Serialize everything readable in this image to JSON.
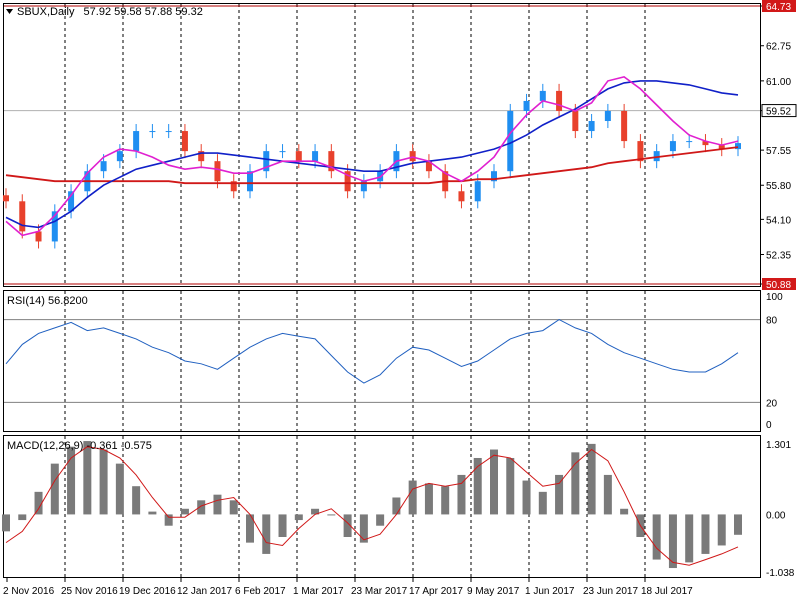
{
  "colors": {
    "bull": "#1f8ef1",
    "bear": "#e8412c",
    "ma_fast": "#e020d0",
    "ma_mid": "#1020c8",
    "ma_slow": "#d01818",
    "rsi_line": "#2060c0",
    "macd_hist": "#7a7a7a",
    "macd_signal": "#d01818",
    "price_line": "#b00000",
    "level_bg": "#d21919"
  },
  "chart_data": [
    {
      "type": "candlestick",
      "title": "SBUX,Daily",
      "ohlc_label": "57.92 59.58 57.88 59.32",
      "ylim": [
        50.88,
        64.73
      ],
      "yticks": [
        "64.73",
        "62.75",
        "61.00",
        "59.52",
        "57.55",
        "55.80",
        "54.10",
        "52.35",
        "50.88"
      ],
      "highlight_levels": [
        "64.73",
        "50.88"
      ],
      "current_price": "59.52",
      "xlabels": [
        "2 Nov 2016",
        "25 Nov 2016",
        "19 Dec 2016",
        "12 Jan 2017",
        "6 Feb 2017",
        "1 Mar 2017",
        "23 Mar 2017",
        "17 Apr 2017",
        "9 May 2017",
        "1 Jun 2017",
        "23 Jun 2017",
        "18 Jul 2017"
      ],
      "grid": "vertical dashed at date labels",
      "series": [
        {
          "values": [
            55.0,
            53.5,
            53.0,
            54.5,
            55.5,
            56.5,
            57.0,
            57.5,
            58.5,
            58.5,
            58.5,
            57.5,
            57.0,
            56.0,
            55.5,
            56.5,
            57.5,
            57.5,
            57.0,
            57.5,
            56.5,
            55.5,
            56.0,
            56.5,
            57.5,
            57.0,
            56.5,
            55.5,
            55.0,
            56.0,
            56.5,
            59.5,
            60.0,
            60.5,
            59.5,
            58.5,
            59.0,
            59.5,
            58.0,
            57.0,
            57.5,
            58.0,
            58.0,
            57.8,
            57.6,
            57.9
          ]
        },
        {
          "values": [
            54.0,
            53.3,
            53.5,
            54.3,
            55.3,
            56.4,
            57.2,
            57.6,
            57.5,
            57.2,
            56.8,
            56.6,
            56.7,
            56.6,
            56.4,
            56.4,
            56.7,
            57.0,
            57.0,
            57.0,
            56.7,
            56.3,
            56.0,
            56.2,
            57.0,
            57.2,
            57.0,
            56.4,
            56.0,
            56.5,
            57.2,
            58.4,
            59.3,
            60.0,
            59.8,
            59.5,
            59.9,
            61.0,
            61.2,
            60.6,
            59.8,
            59.0,
            58.3,
            58.0,
            57.8,
            58.0
          ]
        },
        {
          "values": [
            54.2,
            53.8,
            53.7,
            54.0,
            54.5,
            55.2,
            55.8,
            56.2,
            56.6,
            56.8,
            57.0,
            57.2,
            57.4,
            57.4,
            57.3,
            57.2,
            57.1,
            57.0,
            56.9,
            56.8,
            56.7,
            56.6,
            56.5,
            56.5,
            56.7,
            56.9,
            57.0,
            57.1,
            57.2,
            57.4,
            57.6,
            57.9,
            58.3,
            58.8,
            59.2,
            59.6,
            60.1,
            60.6,
            60.9,
            61.0,
            61.0,
            60.9,
            60.8,
            60.6,
            60.4,
            60.3
          ]
        },
        {
          "values": [
            56.3,
            56.2,
            56.1,
            56.0,
            56.0,
            56.0,
            56.0,
            56.0,
            56.0,
            56.0,
            56.0,
            55.9,
            55.9,
            55.9,
            55.9,
            55.9,
            55.9,
            55.9,
            55.9,
            55.9,
            55.9,
            55.9,
            55.9,
            55.9,
            55.9,
            55.9,
            55.9,
            56.0,
            56.0,
            56.1,
            56.1,
            56.2,
            56.3,
            56.4,
            56.5,
            56.6,
            56.7,
            56.9,
            57.0,
            57.1,
            57.2,
            57.3,
            57.4,
            57.5,
            57.6,
            57.7
          ]
        }
      ]
    },
    {
      "type": "line",
      "title": "RSI(14) 56.8200",
      "ylim": [
        0,
        100
      ],
      "yticks": [
        "100",
        "80",
        "20",
        "0"
      ],
      "levels": [
        80,
        20
      ],
      "series": [
        {
          "values": [
            48,
            62,
            70,
            74,
            78,
            72,
            74,
            70,
            66,
            60,
            56,
            50,
            48,
            44,
            52,
            60,
            66,
            70,
            68,
            66,
            54,
            42,
            34,
            40,
            52,
            60,
            58,
            52,
            46,
            50,
            58,
            66,
            70,
            72,
            80,
            74,
            70,
            62,
            56,
            52,
            48,
            44,
            42,
            42,
            48,
            56
          ]
        }
      ]
    },
    {
      "type": "bar",
      "title": "MACD(12,26,9) -0.361 -0.575",
      "ylim": [
        -1.038,
        1.301
      ],
      "yticks": [
        "1.301",
        "0.00",
        "-1.038"
      ],
      "series": [
        {
          "values": [
            -0.3,
            -0.1,
            0.4,
            0.9,
            1.2,
            1.3,
            1.15,
            0.9,
            0.5,
            0.05,
            -0.2,
            0.1,
            0.25,
            0.35,
            0.25,
            -0.5,
            -0.7,
            -0.4,
            -0.1,
            0.1,
            0.0,
            -0.4,
            -0.5,
            -0.2,
            0.3,
            0.6,
            0.55,
            0.5,
            0.7,
            1.0,
            1.15,
            1.0,
            0.6,
            0.4,
            0.7,
            1.1,
            1.25,
            0.7,
            0.1,
            -0.4,
            -0.8,
            -0.95,
            -0.85,
            -0.7,
            -0.55,
            -0.361
          ]
        },
        {
          "values": [
            -0.5,
            -0.3,
            0.1,
            0.6,
            1.0,
            1.2,
            1.15,
            1.0,
            0.7,
            0.3,
            -0.05,
            -0.05,
            0.15,
            0.25,
            0.3,
            0.0,
            -0.5,
            -0.55,
            -0.25,
            0.0,
            0.1,
            -0.15,
            -0.45,
            -0.35,
            0.0,
            0.45,
            0.55,
            0.5,
            0.55,
            0.85,
            1.05,
            1.0,
            0.75,
            0.5,
            0.55,
            0.9,
            1.15,
            0.95,
            0.4,
            -0.2,
            -0.6,
            -0.85,
            -0.9,
            -0.8,
            -0.7,
            -0.575
          ]
        }
      ]
    }
  ]
}
